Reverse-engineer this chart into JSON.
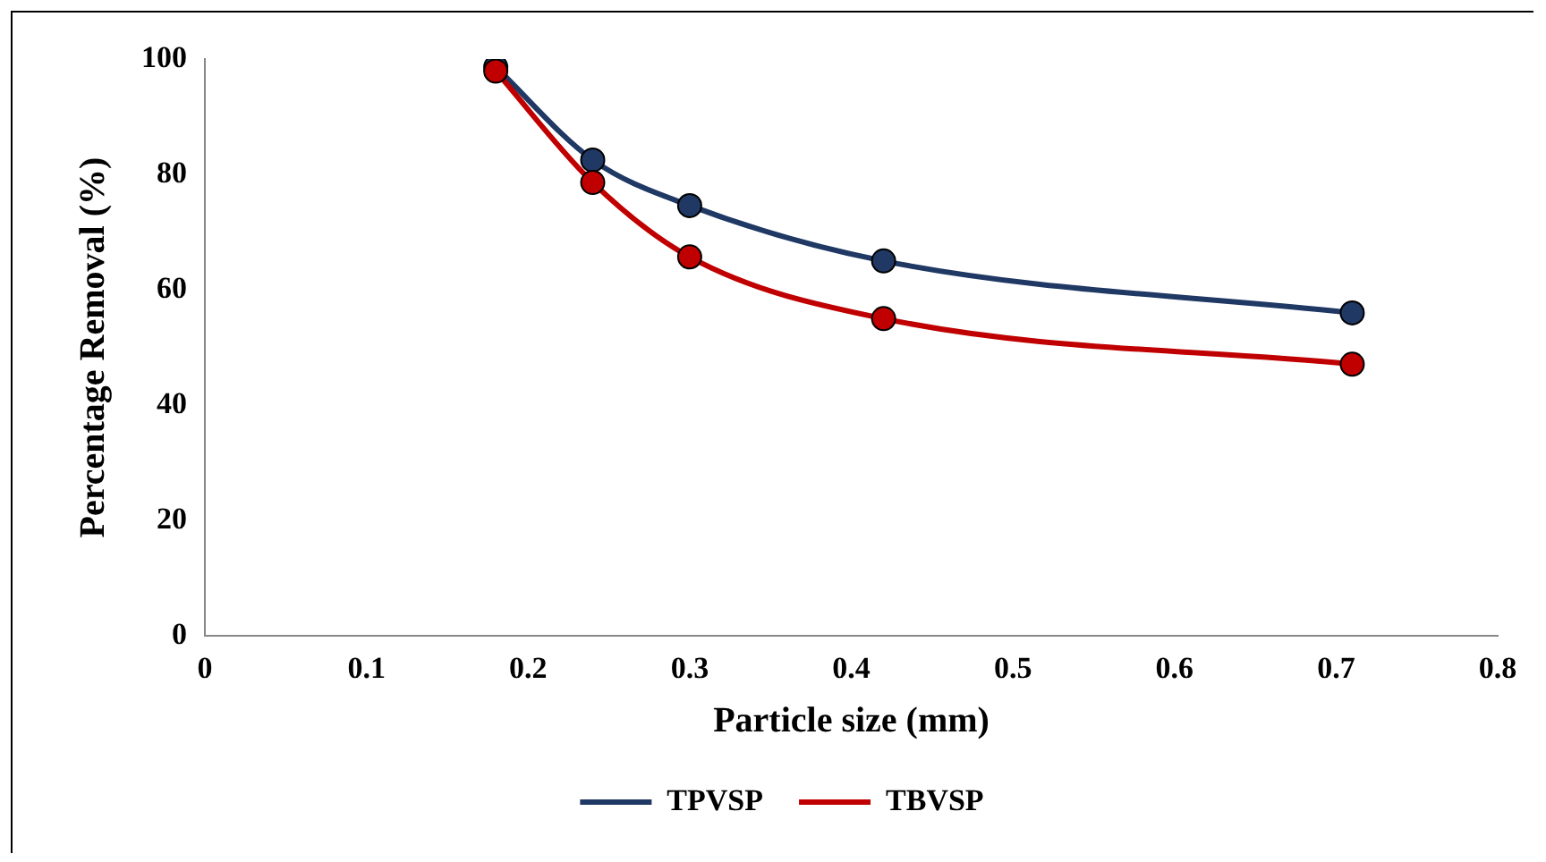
{
  "chart_data": {
    "type": "line",
    "xlabel": "Particle size (mm)",
    "ylabel": "Percentage Removal (%)",
    "xlim": [
      0,
      0.8
    ],
    "xticks": [
      0,
      0.1,
      0.2,
      0.3,
      0.4,
      0.5,
      0.6,
      0.7,
      0.8
    ],
    "ylim": [
      0,
      100
    ],
    "yticks": [
      0,
      20,
      40,
      60,
      80,
      100
    ],
    "grid": false,
    "legend": "bottom",
    "marker": "circle",
    "line_style": "solid",
    "series": [
      {
        "name": "TPVSP",
        "color": "#1f3864",
        "x": [
          0.18,
          0.24,
          0.3,
          0.42,
          0.71
        ],
        "values": [
          98.6,
          82.5,
          74.6,
          65,
          56
        ]
      },
      {
        "name": "TBVSP",
        "color": "#c00000",
        "x": [
          0.18,
          0.24,
          0.3,
          0.42,
          0.71
        ],
        "values": [
          97.9,
          78.6,
          65.7,
          55,
          47.1
        ]
      }
    ]
  }
}
